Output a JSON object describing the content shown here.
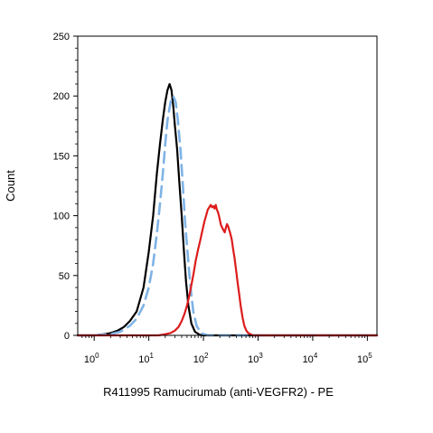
{
  "chart_data": {
    "type": "line",
    "title": "",
    "xlabel": "R411995 Ramucirumab (anti-VEGFR2) - PE",
    "ylabel": "Count",
    "x_scale": "log",
    "xlim": [
      0.5,
      150000
    ],
    "ylim": [
      0,
      250
    ],
    "x_ticks": [
      {
        "value": 1,
        "base": "10",
        "exp": "0"
      },
      {
        "value": 10,
        "base": "10",
        "exp": "1"
      },
      {
        "value": 100,
        "base": "10",
        "exp": "2"
      },
      {
        "value": 1000,
        "base": "10",
        "exp": "3"
      },
      {
        "value": 10000,
        "base": "10",
        "exp": "4"
      },
      {
        "value": 100000,
        "base": "10",
        "exp": "5"
      }
    ],
    "y_ticks": [
      "0",
      "50",
      "100",
      "150",
      "200",
      "250"
    ],
    "grid": false,
    "legend": "none",
    "series": [
      {
        "color": "#000000",
        "style": "solid",
        "points": [
          [
            0.5,
            0
          ],
          [
            1,
            0
          ],
          [
            1.5,
            1
          ],
          [
            2,
            2
          ],
          [
            2.7,
            4
          ],
          [
            3.5,
            7
          ],
          [
            4.5,
            12
          ],
          [
            6,
            20
          ],
          [
            8,
            40
          ],
          [
            10,
            70
          ],
          [
            12,
            100
          ],
          [
            14,
            135
          ],
          [
            16,
            160
          ],
          [
            18,
            180
          ],
          [
            20,
            195
          ],
          [
            22,
            205
          ],
          [
            24,
            210
          ],
          [
            26,
            205
          ],
          [
            28,
            192
          ],
          [
            30,
            175
          ],
          [
            33,
            155
          ],
          [
            36,
            130
          ],
          [
            40,
            100
          ],
          [
            44,
            70
          ],
          [
            48,
            45
          ],
          [
            53,
            25
          ],
          [
            60,
            10
          ],
          [
            70,
            3
          ],
          [
            85,
            0.5
          ],
          [
            100,
            0
          ],
          [
            150000,
            0
          ]
        ]
      },
      {
        "color": "#7fb3e6",
        "style": "dashed",
        "points": [
          [
            0.5,
            0
          ],
          [
            1,
            0
          ],
          [
            2,
            1
          ],
          [
            3,
            3
          ],
          [
            4.5,
            8
          ],
          [
            6,
            14
          ],
          [
            8,
            25
          ],
          [
            10,
            40
          ],
          [
            12,
            60
          ],
          [
            14,
            85
          ],
          [
            16,
            110
          ],
          [
            18,
            135
          ],
          [
            20,
            160
          ],
          [
            22,
            180
          ],
          [
            25,
            195
          ],
          [
            28,
            200
          ],
          [
            31,
            195
          ],
          [
            34,
            180
          ],
          [
            38,
            155
          ],
          [
            42,
            125
          ],
          [
            46,
            95
          ],
          [
            52,
            65
          ],
          [
            58,
            40
          ],
          [
            65,
            20
          ],
          [
            75,
            8
          ],
          [
            90,
            2
          ],
          [
            120,
            0
          ],
          [
            150000,
            0
          ]
        ]
      },
      {
        "color": "#dd1c1c",
        "style": "solid",
        "points": [
          [
            0.5,
            0
          ],
          [
            15,
            0
          ],
          [
            20,
            1
          ],
          [
            25,
            2
          ],
          [
            30,
            4
          ],
          [
            35,
            7
          ],
          [
            40,
            12
          ],
          [
            45,
            18
          ],
          [
            50,
            25
          ],
          [
            55,
            33
          ],
          [
            60,
            42
          ],
          [
            66,
            52
          ],
          [
            72,
            62
          ],
          [
            80,
            72
          ],
          [
            88,
            80
          ],
          [
            96,
            88
          ],
          [
            104,
            95
          ],
          [
            112,
            100
          ],
          [
            120,
            105
          ],
          [
            128,
            107
          ],
          [
            136,
            109
          ],
          [
            144,
            107
          ],
          [
            152,
            108
          ],
          [
            160,
            106
          ],
          [
            168,
            109
          ],
          [
            176,
            105
          ],
          [
            184,
            103
          ],
          [
            192,
            100
          ],
          [
            200,
            96
          ],
          [
            210,
            92
          ],
          [
            220,
            90
          ],
          [
            232,
            88
          ],
          [
            245,
            86
          ],
          [
            258,
            90
          ],
          [
            270,
            93
          ],
          [
            283,
            91
          ],
          [
            297,
            88
          ],
          [
            310,
            85
          ],
          [
            330,
            80
          ],
          [
            350,
            72
          ],
          [
            370,
            65
          ],
          [
            395,
            55
          ],
          [
            420,
            45
          ],
          [
            450,
            35
          ],
          [
            480,
            25
          ],
          [
            520,
            15
          ],
          [
            560,
            8
          ],
          [
            610,
            4
          ],
          [
            660,
            2
          ],
          [
            730,
            1
          ],
          [
            800,
            0
          ],
          [
            150000,
            0
          ]
        ]
      }
    ]
  }
}
